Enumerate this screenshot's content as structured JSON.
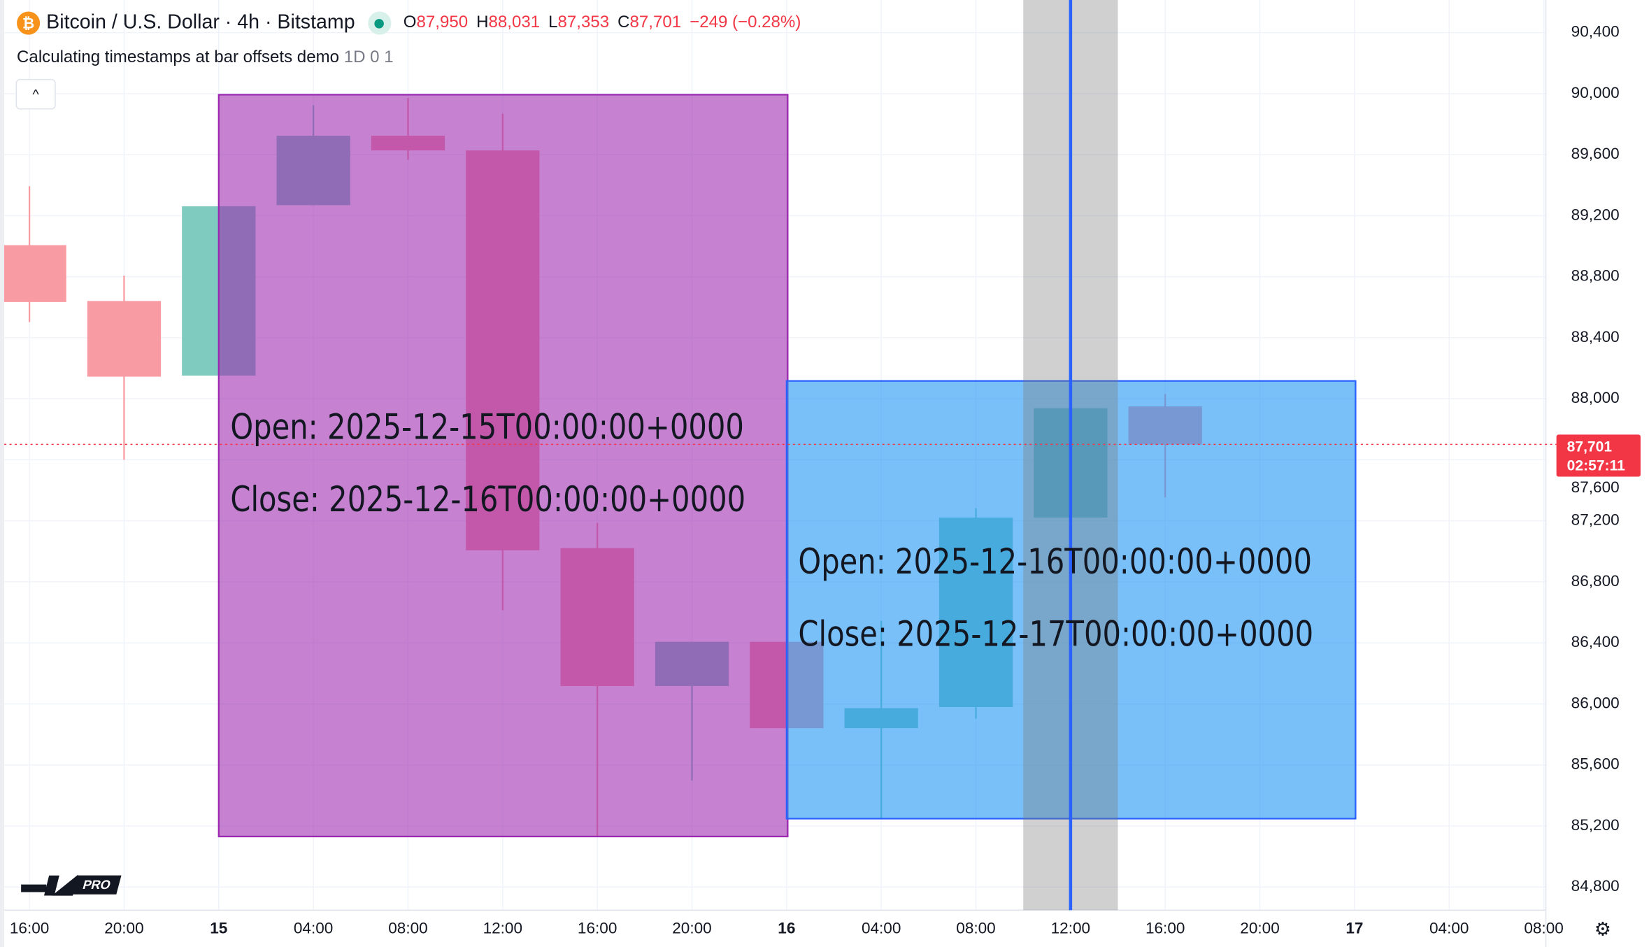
{
  "header": {
    "symbol": "Bitcoin / U.S. Dollar · 4h · Bitstamp",
    "open_label": "O",
    "open": "87,950",
    "high_label": "H",
    "high": "88,031",
    "low_label": "L",
    "low": "87,353",
    "close_label": "C",
    "close": "87,701",
    "change": "−249 (−0.28%)"
  },
  "indicator": {
    "name": "Calculating timestamps at bar offsets demo",
    "args": "1D 0 1"
  },
  "collapse_icon": "^",
  "price_label": {
    "price": "87,701",
    "countdown": "02:57:11"
  },
  "price_axis": [
    "90,400",
    "90,000",
    "89,600",
    "89,200",
    "88,800",
    "88,400",
    "88,000",
    "87,600",
    "87,200",
    "86,800",
    "86,400",
    "86,000",
    "85,600",
    "85,200",
    "84,800"
  ],
  "time_axis": [
    "16:00",
    "20:00",
    "15",
    "04:00",
    "08:00",
    "12:00",
    "16:00",
    "20:00",
    "16",
    "04:00",
    "08:00",
    "12:00",
    "16:00",
    "20:00",
    "17",
    "04:00",
    "08:00"
  ],
  "logo": {
    "mark": "TV",
    "badge": "PRO"
  },
  "gear_icon": "⚙",
  "colors": {
    "up": "#26a69a",
    "down": "#f7525f",
    "box1": "#9c27b0",
    "box2": "#2196f3",
    "line": "#2962ff"
  },
  "chart_data": {
    "type": "candlestick",
    "candles": [
      {
        "o": 89007,
        "h": 89393,
        "l": 88503,
        "c": 88634
      },
      {
        "o": 88641,
        "h": 88807,
        "l": 87600,
        "c": 88145
      },
      {
        "o": 88152,
        "h": 89262,
        "l": 88152,
        "c": 89262
      },
      {
        "o": 89269,
        "h": 89924,
        "l": 89269,
        "c": 89724
      },
      {
        "o": 89724,
        "h": 89972,
        "l": 89566,
        "c": 89628
      },
      {
        "o": 89628,
        "h": 89869,
        "l": 86614,
        "c": 87007
      },
      {
        "o": 87021,
        "h": 87186,
        "l": 85131,
        "c": 86117
      },
      {
        "o": 86117,
        "h": 86407,
        "l": 85497,
        "c": 86407
      },
      {
        "o": 86407,
        "h": 86407,
        "l": 85841,
        "c": 85841
      },
      {
        "o": 85841,
        "h": 86545,
        "l": 85248,
        "c": 85972
      },
      {
        "o": 85979,
        "h": 87283,
        "l": 85903,
        "c": 87221
      },
      {
        "o": 87221,
        "h": 87938,
        "l": 87221,
        "c": 87938
      },
      {
        "o": 87950,
        "h": 88031,
        "l": 87353,
        "c": 87701
      }
    ],
    "ylim": [
      84800,
      90400
    ],
    "boxes": [
      {
        "from_bar": 2,
        "to_bar": 8,
        "top": 89993,
        "bottom": 85131,
        "open_text": "Open: 2025-12-15T00:00:00+0000",
        "close_text": "Close: 2025-12-16T00:00:00+0000"
      },
      {
        "from_bar": 8,
        "to_bar": 14,
        "top": 88117,
        "bottom": 85248,
        "open_text": "Open: 2025-12-16T00:00:00+0000",
        "close_text": "Close: 2025-12-17T00:00:00+0000"
      }
    ],
    "highlight_bar": 11,
    "last_price": 87701
  }
}
